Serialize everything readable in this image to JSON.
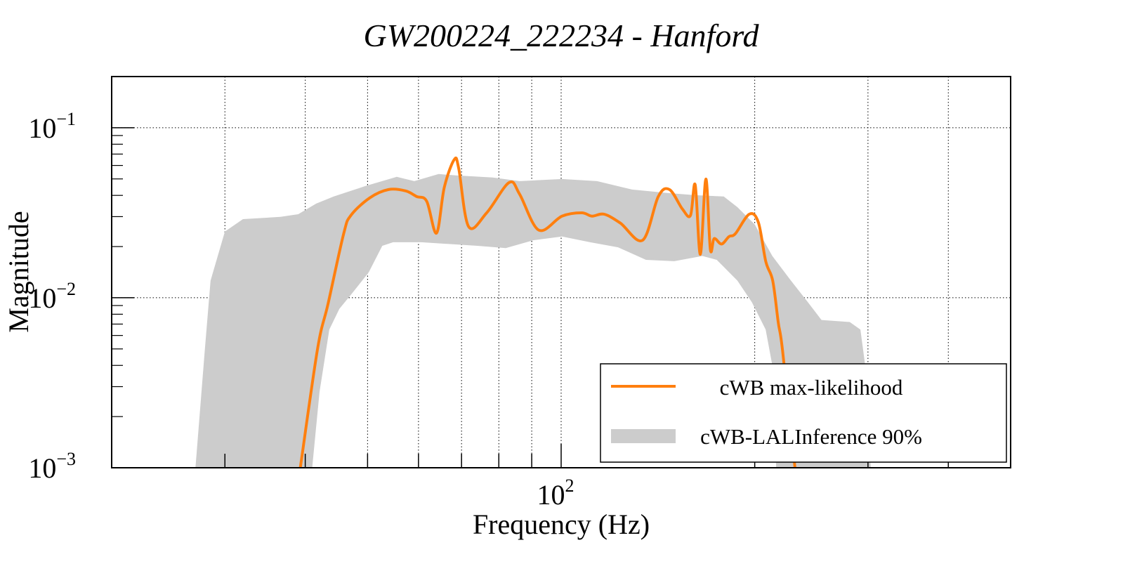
{
  "chart_data": {
    "type": "area",
    "title": "GW200224_222234 - Hanford",
    "xlabel": "Frequency (Hz)",
    "ylabel": "Magnitude",
    "xscale": "log",
    "yscale": "log",
    "xlim": [
      20,
      500
    ],
    "ylim": [
      0.001,
      0.2
    ],
    "grid": true,
    "x_major_ticks": [
      {
        "value": 100,
        "base": "10",
        "exp": "2"
      }
    ],
    "x_minor_ticks": [
      20,
      30,
      40,
      50,
      60,
      70,
      80,
      90,
      200,
      300,
      400
    ],
    "y_major_ticks": [
      {
        "value": 0.1,
        "base": "10",
        "exp": "−1"
      },
      {
        "value": 0.01,
        "base": "10",
        "exp": "−2"
      },
      {
        "value": 0.001,
        "base": "10",
        "exp": "−3"
      }
    ],
    "legend": {
      "placement": "lower-right",
      "entries": [
        {
          "label": "cWB max-likelihood",
          "kind": "line",
          "color": "#ff7f0e"
        },
        {
          "label": "cWB-LALInference 90%",
          "kind": "band",
          "color": "#cccccc"
        }
      ]
    },
    "series": [
      {
        "name": "cWB max-likelihood",
        "type": "line",
        "color": "#ff7f0e",
        "x": [
          39.3,
          41.8,
          43.4,
          45.9,
          47.1,
          50.4,
          53.9,
          57.3,
          59.6,
          61.8,
          64.0,
          65.8,
          68.2,
          69.3,
          71.8,
          76.6,
          83.0,
          86.2,
          92.3,
          100.3,
          107.6,
          111.7,
          116.6,
          123.6,
          133.9,
          141.6,
          147.4,
          154.4,
          158.9,
          161.6,
          164.6,
          167.9,
          170.6,
          173.0,
          177.6,
          182.4,
          186.6,
          196.1,
          202.6,
          208.1,
          213.3,
          217.6,
          221.0,
          231.0
        ],
        "y": [
          0.001,
          0.005,
          0.0092,
          0.0238,
          0.0305,
          0.0387,
          0.0433,
          0.0425,
          0.0394,
          0.0369,
          0.024,
          0.0445,
          0.065,
          0.0576,
          0.0262,
          0.0316,
          0.0476,
          0.0406,
          0.025,
          0.0302,
          0.0316,
          0.0302,
          0.031,
          0.0275,
          0.0218,
          0.0394,
          0.0433,
          0.0332,
          0.0305,
          0.0462,
          0.018,
          0.0499,
          0.0193,
          0.0223,
          0.0207,
          0.0229,
          0.0238,
          0.031,
          0.0278,
          0.0163,
          0.0126,
          0.00714,
          0.00486,
          0.001
        ]
      },
      {
        "name": "cWB-LALInference 90%",
        "type": "band",
        "color": "#cccccc",
        "upper": {
          "x": [
            27.0,
            27.9,
            28.5,
            30.0,
            32.0,
            36.6,
            39.0,
            41.6,
            44.3,
            49.6,
            55.5,
            59.1,
            64.5,
            68.7,
            78.3,
            86.2,
            100.3,
            113.7,
            128.9,
            146.2,
            161.6,
            179.0,
            188.0,
            200.0,
            213.0,
            227.0,
            242.0,
            254.0,
            281.0,
            292.0,
            297.0,
            303.0
          ],
          "y": [
            0.001,
            0.0048,
            0.0126,
            0.0245,
            0.029,
            0.0299,
            0.031,
            0.0358,
            0.0394,
            0.0454,
            0.0514,
            0.0485,
            0.0534,
            0.0524,
            0.051,
            0.0485,
            0.0499,
            0.0485,
            0.0433,
            0.0413,
            0.0401,
            0.0394,
            0.0341,
            0.027,
            0.0176,
            0.0128,
            0.0094,
            0.0074,
            0.0072,
            0.0065,
            0.004,
            0.001
          ]
        },
        "lower": {
          "x": [
            41.0,
            42.1,
            43.6,
            45.2,
            47.1,
            50.2,
            52.7,
            54.8,
            60.6,
            66.9,
            74.1,
            82.0,
            90.6,
            100.3,
            110.9,
            122.6,
            135.5,
            149.9,
            165.8,
            174.6,
            188.0,
            198.0,
            208.0,
            213.0,
            216.0
          ],
          "y": [
            0.001,
            0.0028,
            0.0065,
            0.0086,
            0.0104,
            0.0141,
            0.0202,
            0.0212,
            0.0212,
            0.0207,
            0.0202,
            0.0196,
            0.0218,
            0.0229,
            0.0212,
            0.0198,
            0.0167,
            0.0164,
            0.0176,
            0.0167,
            0.0126,
            0.0094,
            0.0065,
            0.004,
            0.001
          ]
        }
      }
    ]
  }
}
